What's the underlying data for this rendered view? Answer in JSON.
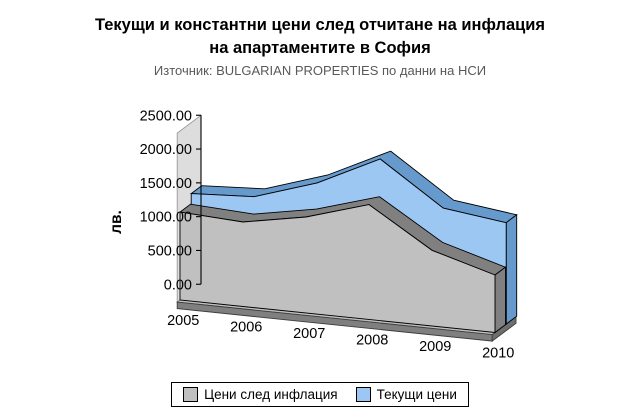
{
  "title": {
    "line1": "Текущи и константни цени след отчитане на инфлация",
    "line2": "на апартаментите в София",
    "subtitle": "Източник: BULGARIAN PROPERTIES по данни на НСИ"
  },
  "chart_data": {
    "type": "area",
    "projection": "3d",
    "title": "Текущи и константни цени след отчитане на инфлация на апартаментите в София",
    "subtitle": "Източник: BULGARIAN PROPERTIES по данни на НСИ",
    "categories": [
      "2005",
      "2006",
      "2007",
      "2008",
      "2009",
      "2010"
    ],
    "series": [
      {
        "name": "Цени след инфлация",
        "color": "#C0C0C0",
        "edge": "#808080",
        "values": [
          1300,
          1250,
          1420,
          1700,
          1120,
          850
        ]
      },
      {
        "name": "Текущи цени",
        "color": "#9CC7F2",
        "edge": "#6699CC",
        "values": [
          1450,
          1500,
          1800,
          2250,
          1620,
          1500
        ]
      }
    ],
    "xlabel": "",
    "ylabel": "лв.",
    "ylim": [
      0,
      2500
    ],
    "ytick_step": 500,
    "ytick_labels": [
      "0.00",
      "500.00",
      "1000.00",
      "1500.00",
      "2000.00",
      "2500.00"
    ],
    "grid": false,
    "legend_position": "bottom"
  }
}
